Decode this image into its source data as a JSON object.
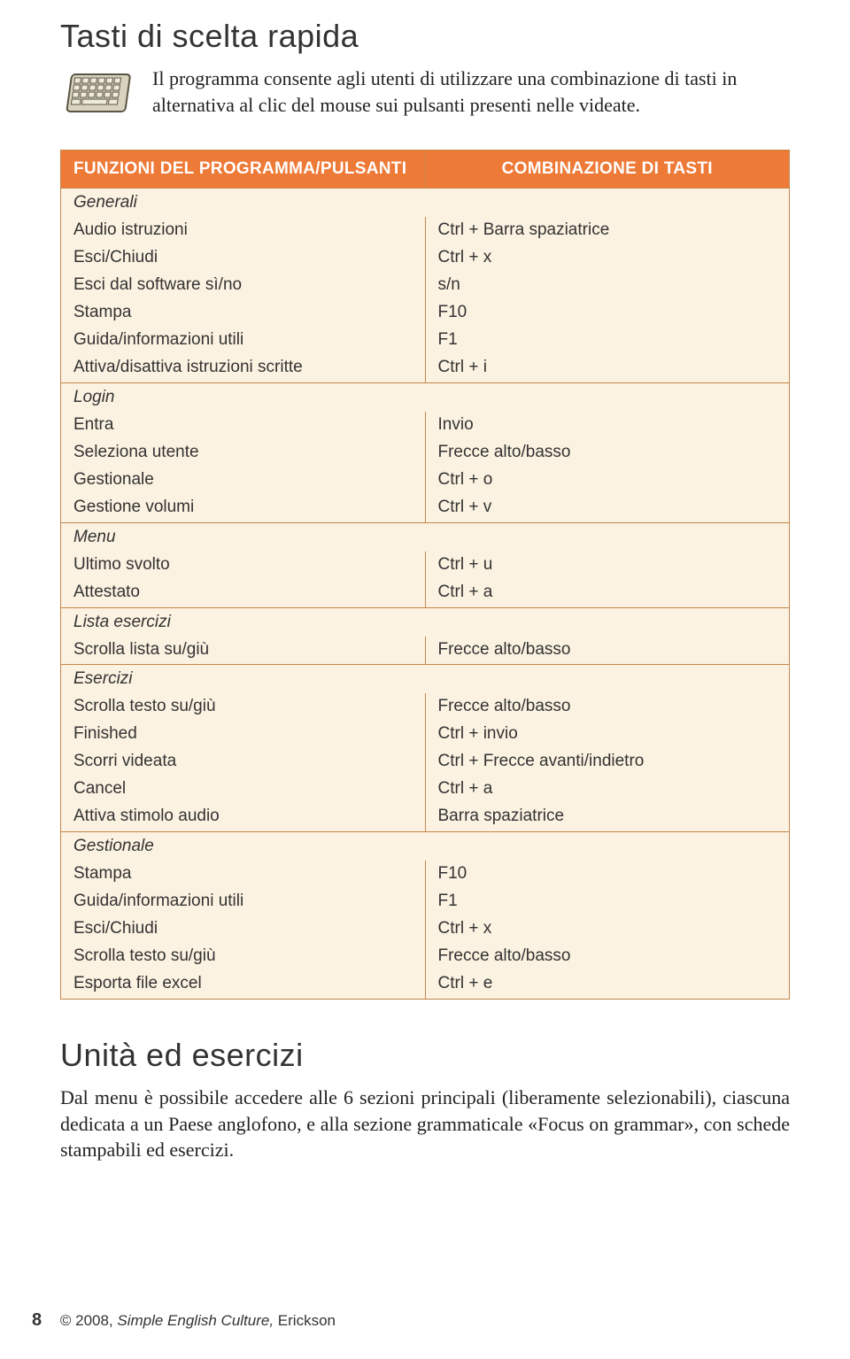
{
  "title": "Tasti di scelta rapida",
  "intro": "Il programma consente agli utenti di utilizzare una combinazione di tasti in alternativa al clic del mouse sui pulsanti presenti nelle videate.",
  "table": {
    "header_left": "FUNZIONI DEL PROGRAMMA/PULSANTI",
    "header_right": "COMBINAZIONE DI TASTI",
    "sections": [
      {
        "name": "Generali",
        "rows": [
          [
            "Audio istruzioni",
            "Ctrl + Barra spaziatrice"
          ],
          [
            "Esci/Chiudi",
            "Ctrl + x"
          ],
          [
            "Esci dal software sì/no",
            "s/n"
          ],
          [
            "Stampa",
            "F10"
          ],
          [
            "Guida/informazioni utili",
            "F1"
          ],
          [
            "Attiva/disattiva istruzioni scritte",
            "Ctrl + i"
          ]
        ]
      },
      {
        "name": "Login",
        "rows": [
          [
            "Entra",
            "Invio"
          ],
          [
            "Seleziona utente",
            "Frecce alto/basso"
          ],
          [
            "Gestionale",
            "Ctrl + o"
          ],
          [
            "Gestione volumi",
            "Ctrl + v"
          ]
        ]
      },
      {
        "name": "Menu",
        "rows": [
          [
            "Ultimo svolto",
            "Ctrl + u"
          ],
          [
            "Attestato",
            "Ctrl + a"
          ]
        ]
      },
      {
        "name": "Lista esercizi",
        "rows": [
          [
            "Scrolla lista su/giù",
            "Frecce alto/basso"
          ]
        ]
      },
      {
        "name": "Esercizi",
        "rows": [
          [
            "Scrolla testo su/giù",
            "Frecce alto/basso"
          ],
          [
            "Finished",
            "Ctrl + invio"
          ],
          [
            "Scorri videata",
            "Ctrl + Frecce avanti/indietro"
          ],
          [
            "Cancel",
            "Ctrl + a"
          ],
          [
            "Attiva stimolo audio",
            "Barra spaziatrice"
          ]
        ]
      },
      {
        "name": "Gestionale",
        "rows": [
          [
            "Stampa",
            "F10"
          ],
          [
            "Guida/informazioni utili",
            "F1"
          ],
          [
            "Esci/Chiudi",
            "Ctrl + x"
          ],
          [
            "Scrolla testo su/giù",
            "Frecce alto/basso"
          ],
          [
            "Esporta file excel",
            "Ctrl + e"
          ]
        ]
      }
    ]
  },
  "section2": {
    "title": "Unità ed esercizi",
    "body": "Dal menu è possibile accedere alle 6 sezioni principali (liberamente selezionabili), ciascuna dedicata a un Paese anglofono, e alla sezione grammaticale «Focus on grammar», con schede stampabili ed esercizi."
  },
  "footer": {
    "page": "8",
    "copyright": "© 2008, ",
    "book": "Simple English Culture, ",
    "publisher": "Erickson"
  },
  "style": {
    "header_bg": "#ee7a38",
    "header_fg": "#ffffff",
    "cell_bg": "#fcf2e1",
    "border": "#c4874a",
    "body_font_size": 22,
    "table_font_size": 19,
    "title_font_size": 36
  }
}
